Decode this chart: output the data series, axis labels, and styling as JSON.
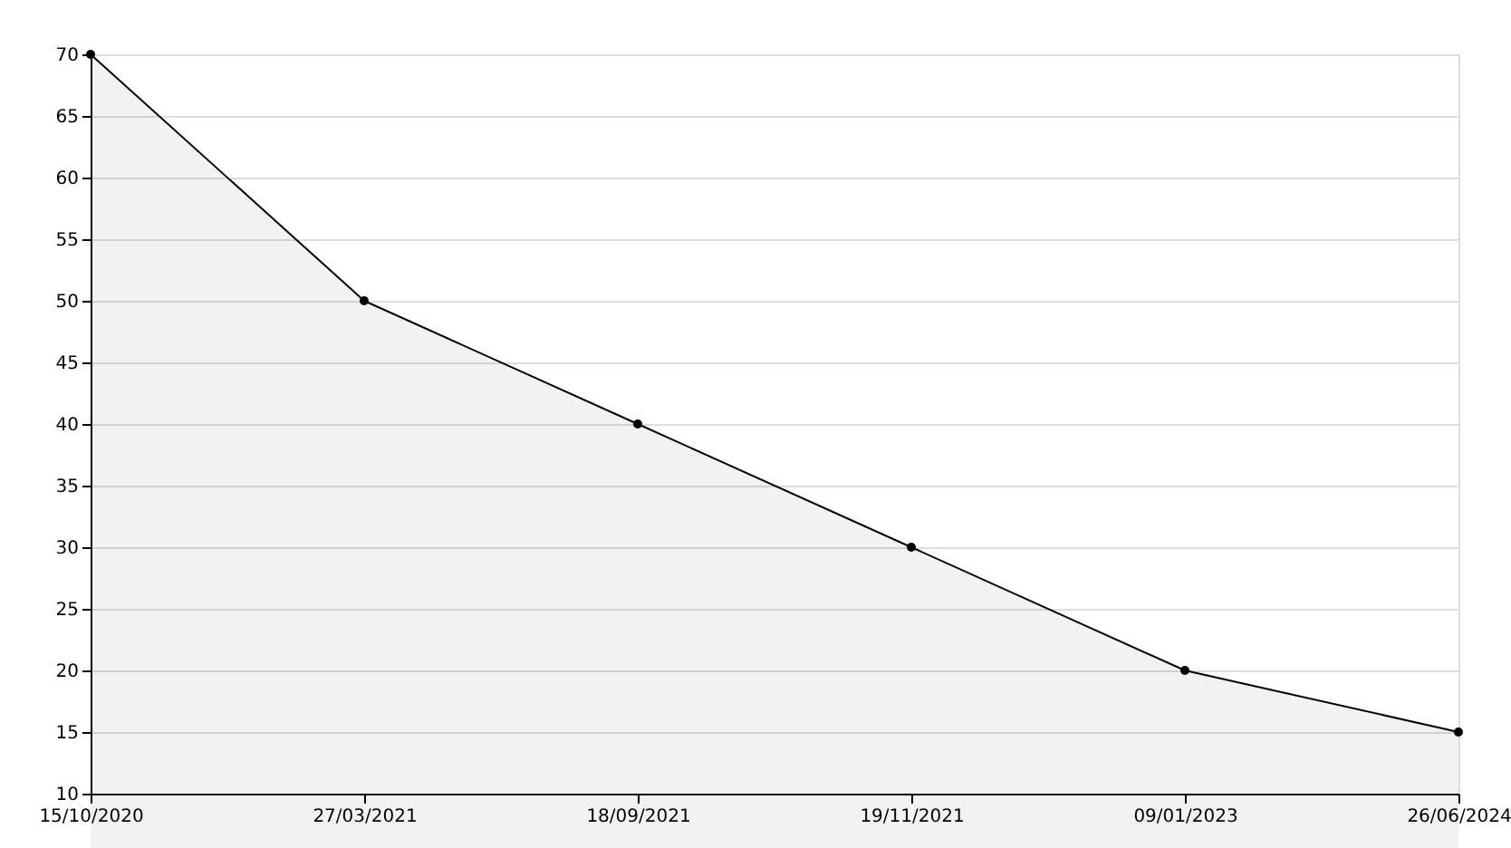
{
  "chart_data": {
    "type": "area",
    "categories": [
      "15/10/2020",
      "27/03/2021",
      "18/09/2021",
      "19/11/2021",
      "09/01/2023",
      "26/06/2024"
    ],
    "series": [
      {
        "color": "#000000",
        "values": [
          70,
          50,
          40,
          30,
          20,
          15
        ]
      }
    ],
    "ylim": [
      10,
      70
    ],
    "yticks": [
      10,
      15,
      20,
      25,
      30,
      35,
      40,
      45,
      50,
      55,
      60,
      65,
      70
    ],
    "grid": "y",
    "marker": "circle",
    "line_style": "solid"
  }
}
